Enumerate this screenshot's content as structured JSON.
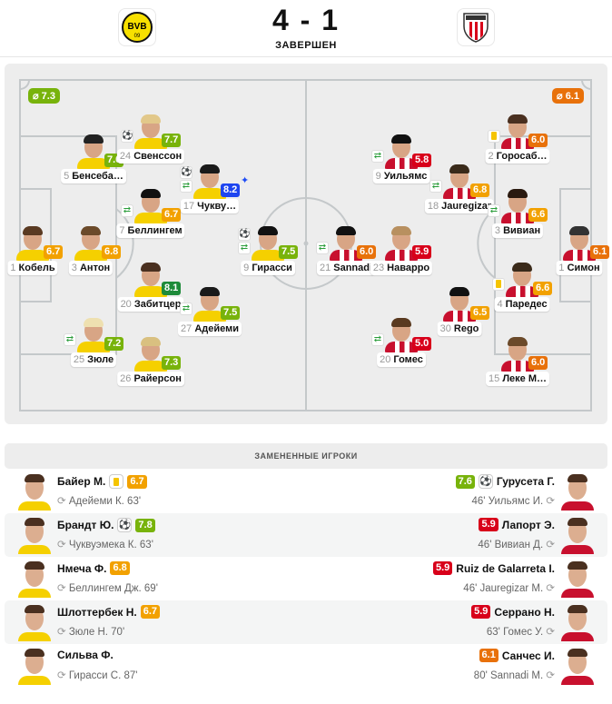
{
  "match": {
    "home_team": "Borussia Dortmund",
    "away_team": "Athletic Club",
    "score": "4 - 1",
    "status": "ЗАВЕРШЕН",
    "home_logo_text": "BVB 09"
  },
  "colors": {
    "amber": "#f2a100",
    "orange": "#e8710a",
    "green": "#78b30b",
    "dark_green": "#1e8b3a",
    "blue": "#1e45f0",
    "red": "#d8001a",
    "home_shirt": "#f5d000",
    "away_shirt": "#c8102e"
  },
  "lineup": {
    "home_avg": "⌀ 7.3",
    "away_avg": "⌀ 6.1",
    "home": [
      {
        "num": "1",
        "name": "Кобель",
        "rating": "6.7",
        "color": "amber",
        "events": []
      },
      {
        "num": "5",
        "name": "Бенсеба…",
        "rating": "7.0",
        "color": "green",
        "events": []
      },
      {
        "num": "24",
        "name": "Свенссон",
        "rating": "7.7",
        "color": "green",
        "events": [
          "ball"
        ]
      },
      {
        "num": "3",
        "name": "Антон",
        "rating": "6.8",
        "color": "amber",
        "events": []
      },
      {
        "num": "7",
        "name": "Беллингем",
        "rating": "6.7",
        "color": "amber",
        "events": [
          "sub"
        ]
      },
      {
        "num": "17",
        "name": "Чукву…",
        "rating": "8.2",
        "color": "blue",
        "events": [
          "ball",
          "sub"
        ],
        "motm": true
      },
      {
        "num": "20",
        "name": "Забитцер",
        "rating": "8.1",
        "color": "dark_green",
        "events": []
      },
      {
        "num": "27",
        "name": "Адейеми",
        "rating": "7.5",
        "color": "green",
        "events": [
          "sub"
        ]
      },
      {
        "num": "25",
        "name": "Зюле",
        "rating": "7.2",
        "color": "green",
        "events": [
          "sub"
        ]
      },
      {
        "num": "26",
        "name": "Райерсон",
        "rating": "7.3",
        "color": "green",
        "events": []
      },
      {
        "num": "9",
        "name": "Гирасси",
        "rating": "7.5",
        "color": "green",
        "events": [
          "ball",
          "sub"
        ]
      }
    ],
    "away": [
      {
        "num": "2",
        "name": "Горосаб…",
        "rating": "6.0",
        "color": "orange",
        "events": [
          "yellow"
        ]
      },
      {
        "num": "9",
        "name": "Уильямс",
        "rating": "5.8",
        "color": "red",
        "events": [
          "sub"
        ]
      },
      {
        "num": "18",
        "name": "Jauregizar",
        "rating": "6.8",
        "color": "amber",
        "events": [
          "sub"
        ]
      },
      {
        "num": "3",
        "name": "Вивиан",
        "rating": "6.6",
        "color": "amber",
        "events": [
          "sub"
        ]
      },
      {
        "num": "1",
        "name": "Симон",
        "rating": "6.1",
        "color": "orange",
        "events": []
      },
      {
        "num": "21",
        "name": "Sannadi",
        "rating": "6.0",
        "color": "orange",
        "events": [
          "sub"
        ]
      },
      {
        "num": "23",
        "name": "Наварро",
        "rating": "5.9",
        "color": "red",
        "events": []
      },
      {
        "num": "4",
        "name": "Паредес",
        "rating": "6.6",
        "color": "amber",
        "events": [
          "yellow"
        ]
      },
      {
        "num": "30",
        "name": "Rego",
        "rating": "6.5",
        "color": "amber",
        "events": []
      },
      {
        "num": "20",
        "name": "Гомес",
        "rating": "5.0",
        "color": "red",
        "events": [
          "sub"
        ]
      },
      {
        "num": "15",
        "name": "Леке М…",
        "rating": "6.0",
        "color": "orange",
        "events": []
      }
    ]
  },
  "subs": {
    "title": "ЗАМЕНЕННЫЕ ИГРОКИ",
    "rows": [
      {
        "home": {
          "name": "Байер М.",
          "rating": "6.7",
          "color": "amber",
          "event": "yellow",
          "out": "Адейеми К. 63'"
        },
        "away": {
          "name": "Гурусета Г.",
          "rating": "7.6",
          "color": "green",
          "event": "ball",
          "out": "46' Уильямс И."
        }
      },
      {
        "home": {
          "name": "Брандт Ю.",
          "rating": "7.8",
          "color": "green",
          "event": "ball",
          "out": "Чуквуэмека К. 63'"
        },
        "away": {
          "name": "Лапорт Э.",
          "rating": "5.9",
          "color": "red",
          "event": "",
          "out": "46' Вивиан Д."
        }
      },
      {
        "home": {
          "name": "Нмеча Ф.",
          "rating": "6.8",
          "color": "amber",
          "event": "",
          "out": "Беллингем Дж. 69'"
        },
        "away": {
          "name": "Ruiz de Galarreta I.",
          "rating": "5.9",
          "color": "red",
          "event": "",
          "out": "46' Jauregizar M."
        }
      },
      {
        "home": {
          "name": "Шлоттербек Н.",
          "rating": "6.7",
          "color": "amber",
          "event": "",
          "out": "Зюле Н. 70'"
        },
        "away": {
          "name": "Серрано Н.",
          "rating": "5.9",
          "color": "red",
          "event": "",
          "out": "63' Гомес У."
        }
      },
      {
        "home": {
          "name": "Сильва Ф.",
          "rating": "",
          "color": "",
          "event": "",
          "out": "Гирасси С. 87'"
        },
        "away": {
          "name": "Санчес И.",
          "rating": "6.1",
          "color": "orange",
          "event": "",
          "out": "80' Sannadi M."
        }
      }
    ]
  }
}
